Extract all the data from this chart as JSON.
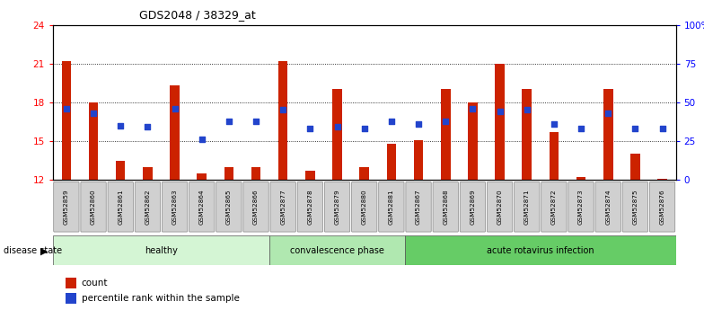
{
  "title": "GDS2048 / 38329_at",
  "samples": [
    "GSM52859",
    "GSM52860",
    "GSM52861",
    "GSM52862",
    "GSM52863",
    "GSM52864",
    "GSM52865",
    "GSM52866",
    "GSM52877",
    "GSM52878",
    "GSM52879",
    "GSM52880",
    "GSM52881",
    "GSM52867",
    "GSM52868",
    "GSM52869",
    "GSM52870",
    "GSM52871",
    "GSM52872",
    "GSM52873",
    "GSM52874",
    "GSM52875",
    "GSM52876"
  ],
  "counts": [
    21.2,
    18.0,
    13.5,
    13.0,
    19.3,
    12.5,
    13.0,
    13.0,
    21.2,
    12.7,
    19.0,
    13.0,
    14.8,
    15.1,
    19.0,
    18.0,
    21.0,
    19.0,
    15.7,
    12.2,
    19.0,
    14.0,
    12.1
  ],
  "percentile_ranks": [
    46,
    43,
    35,
    34,
    46,
    26,
    38,
    38,
    45,
    33,
    34,
    33,
    38,
    36,
    38,
    46,
    44,
    45,
    36,
    33,
    43,
    33,
    33
  ],
  "groups": [
    {
      "label": "healthy",
      "start": 0,
      "end": 8,
      "color": "#d4f5d4"
    },
    {
      "label": "convalescence phase",
      "start": 8,
      "end": 13,
      "color": "#b0e8b0"
    },
    {
      "label": "acute rotavirus infection",
      "start": 13,
      "end": 23,
      "color": "#66cc66"
    }
  ],
  "ylim_left": [
    12,
    24
  ],
  "ylim_right": [
    0,
    100
  ],
  "yticks_left": [
    12,
    15,
    18,
    21,
    24
  ],
  "yticks_right": [
    0,
    25,
    50,
    75,
    100
  ],
  "ytick_labels_right": [
    "0",
    "25",
    "50",
    "75",
    "100%"
  ],
  "bar_color": "#cc2200",
  "dot_color": "#2244cc",
  "bar_width": 0.35,
  "grid_color": "black"
}
